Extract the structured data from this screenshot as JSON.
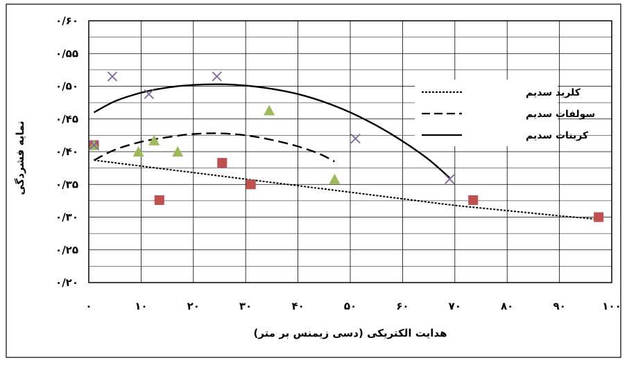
{
  "chart_data": {
    "type": "scatter",
    "xlabel": "هدایت الکتریکی (دسی زیمنس بر متر)",
    "ylabel": "نمایه فشردگی",
    "xlim": [
      0,
      100
    ],
    "ylim": [
      0.2,
      0.6
    ],
    "x_ticks": [
      0,
      10,
      20,
      30,
      40,
      50,
      60,
      70,
      80,
      90,
      100
    ],
    "x_tick_labels": [
      "۰",
      "۱۰",
      "۲۰",
      "۳۰",
      "۴۰",
      "۵۰",
      "۶۰",
      "۷۰",
      "۸۰",
      "۹۰",
      "۱۰۰"
    ],
    "y_ticks": [
      0.2,
      0.25,
      0.3,
      0.35,
      0.4,
      0.45,
      0.5,
      0.55,
      0.6
    ],
    "y_tick_labels": [
      "۰/۲۰",
      "۰/۲۵",
      "۰/۳۰",
      "۰/۳۵",
      "۰/۴۰",
      "۰/۴۵",
      "۰/۵۰",
      "۰/۵۵",
      "۰/۶۰"
    ],
    "grid": "horizontal-and-vertical",
    "legend_position": "right",
    "legend": [
      {
        "label": "کلرید سدیم",
        "style": "dotted"
      },
      {
        "label": "سولفات سدیم",
        "style": "dashed"
      },
      {
        "label": "کربنات سدیم",
        "style": "solid"
      }
    ],
    "scatter_series": [
      {
        "marker": "square",
        "color": "#c0504d",
        "points": [
          [
            1,
            0.41
          ],
          [
            13.5,
            0.326
          ],
          [
            25.5,
            0.383
          ],
          [
            31,
            0.35
          ],
          [
            73.5,
            0.326
          ],
          [
            97.5,
            0.3
          ]
        ]
      },
      {
        "marker": "triangle",
        "color": "#9bbb59",
        "points": [
          [
            1,
            0.41
          ],
          [
            9.5,
            0.4
          ],
          [
            12.5,
            0.417
          ],
          [
            17,
            0.4
          ],
          [
            34.5,
            0.463
          ],
          [
            47,
            0.358
          ]
        ]
      },
      {
        "marker": "x",
        "color": "#8064a2",
        "points": [
          [
            1,
            0.41
          ],
          [
            4.5,
            0.515
          ],
          [
            11.5,
            0.488
          ],
          [
            24.5,
            0.515
          ],
          [
            51,
            0.42
          ],
          [
            69,
            0.358
          ]
        ]
      }
    ],
    "trend_lines": [
      {
        "style": "dotted",
        "points": [
          [
            1,
            0.387
          ],
          [
            10,
            0.378
          ],
          [
            20,
            0.368
          ],
          [
            30,
            0.358
          ],
          [
            40,
            0.348
          ],
          [
            50,
            0.338
          ],
          [
            60,
            0.328
          ],
          [
            70,
            0.318
          ],
          [
            80,
            0.31
          ],
          [
            90,
            0.302
          ],
          [
            97,
            0.297
          ]
        ]
      },
      {
        "style": "dashed",
        "points": [
          [
            1,
            0.387
          ],
          [
            5,
            0.403
          ],
          [
            10,
            0.415
          ],
          [
            15,
            0.422
          ],
          [
            20,
            0.427
          ],
          [
            25,
            0.428
          ],
          [
            30,
            0.425
          ],
          [
            35,
            0.418
          ],
          [
            40,
            0.408
          ],
          [
            44,
            0.397
          ],
          [
            47,
            0.385
          ]
        ]
      },
      {
        "style": "solid",
        "points": [
          [
            1,
            0.46
          ],
          [
            5,
            0.477
          ],
          [
            10,
            0.49
          ],
          [
            15,
            0.498
          ],
          [
            20,
            0.502
          ],
          [
            25,
            0.503
          ],
          [
            30,
            0.501
          ],
          [
            35,
            0.496
          ],
          [
            40,
            0.488
          ],
          [
            45,
            0.476
          ],
          [
            50,
            0.46
          ],
          [
            55,
            0.44
          ],
          [
            60,
            0.416
          ],
          [
            65,
            0.388
          ],
          [
            69,
            0.36
          ]
        ]
      }
    ]
  }
}
